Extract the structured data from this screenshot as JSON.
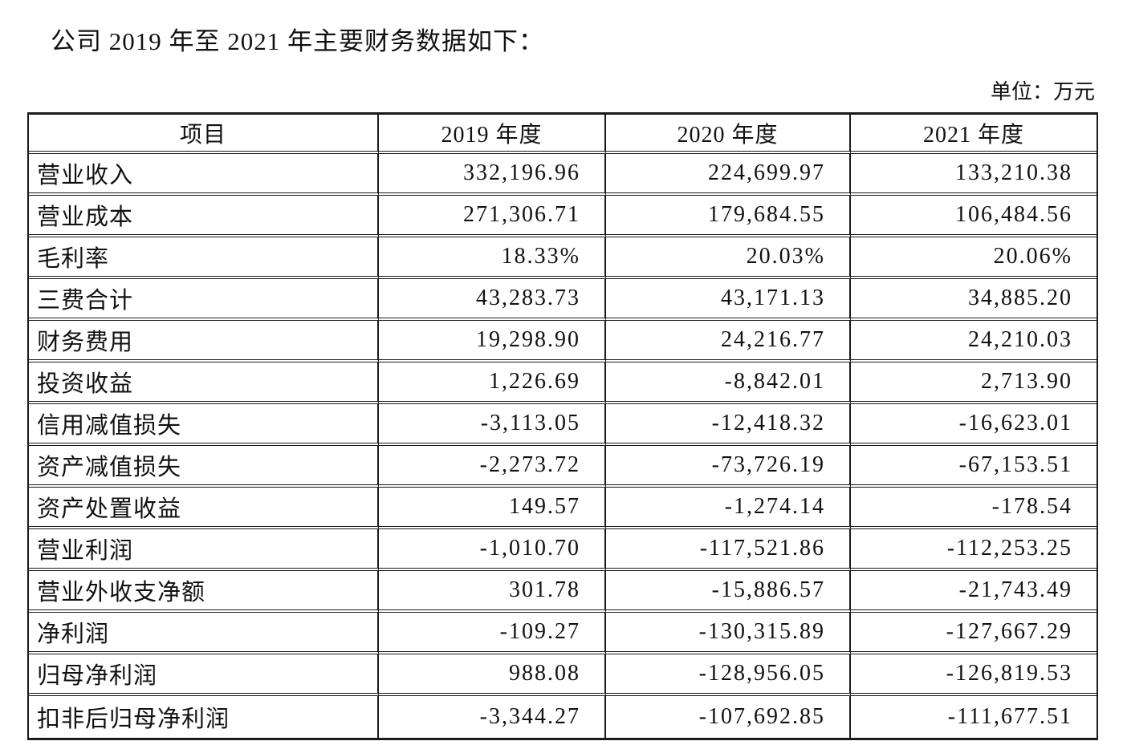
{
  "page": {
    "title": "公司 2019 年至 2021 年主要财务数据如下：",
    "unit_label": "单位：万元"
  },
  "table": {
    "columns": [
      "项目",
      "2019 年度",
      "2020 年度",
      "2021 年度"
    ],
    "rows": [
      [
        "营业收入",
        "332,196.96",
        "224,699.97",
        "133,210.38"
      ],
      [
        "营业成本",
        "271,306.71",
        "179,684.55",
        "106,484.56"
      ],
      [
        "毛利率",
        "18.33%",
        "20.03%",
        "20.06%"
      ],
      [
        "三费合计",
        "43,283.73",
        "43,171.13",
        "34,885.20"
      ],
      [
        "财务费用",
        "19,298.90",
        "24,216.77",
        "24,210.03"
      ],
      [
        "投资收益",
        "1,226.69",
        "-8,842.01",
        "2,713.90"
      ],
      [
        "信用减值损失",
        "-3,113.05",
        "-12,418.32",
        "-16,623.01"
      ],
      [
        "资产减值损失",
        "-2,273.72",
        "-73,726.19",
        "-67,153.51"
      ],
      [
        "资产处置收益",
        "149.57",
        "-1,274.14",
        "-178.54"
      ],
      [
        "营业利润",
        "-1,010.70",
        "-117,521.86",
        "-112,253.25"
      ],
      [
        "营业外收支净额",
        "301.78",
        "-15,886.57",
        "-21,743.49"
      ],
      [
        "净利润",
        "-109.27",
        "-130,315.89",
        "-127,667.29"
      ],
      [
        "归母净利润",
        "988.08",
        "-128,956.05",
        "-126,819.53"
      ],
      [
        "扣非后归母净利润",
        "-3,344.27",
        "-107,692.85",
        "-111,677.51"
      ]
    ]
  }
}
